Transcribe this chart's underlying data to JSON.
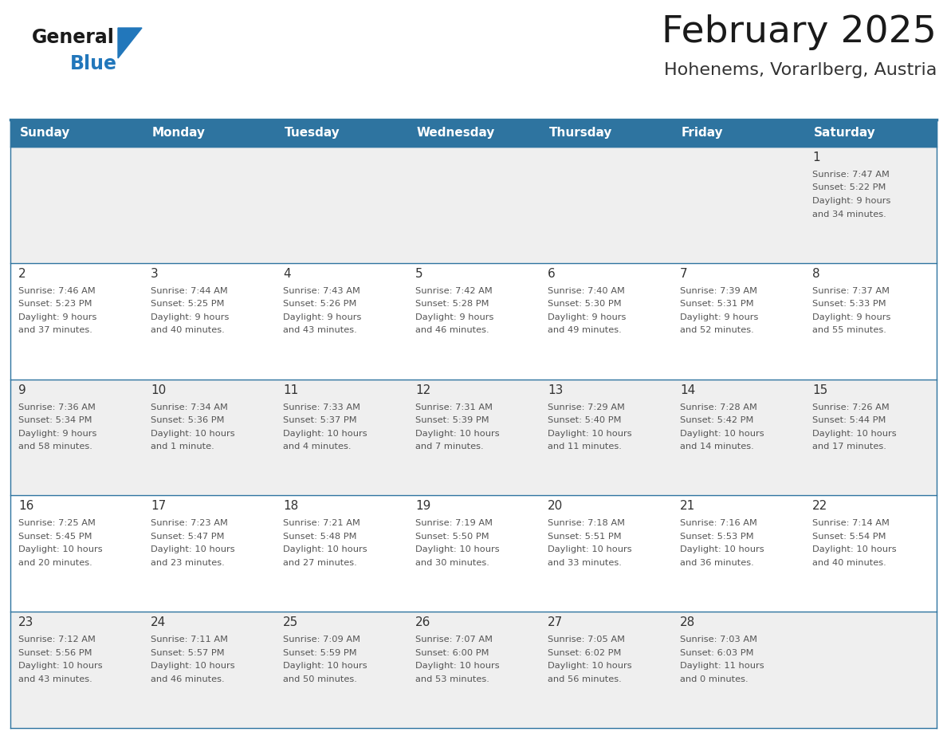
{
  "title": "February 2025",
  "subtitle": "Hohenems, Vorarlberg, Austria",
  "days_of_week": [
    "Sunday",
    "Monday",
    "Tuesday",
    "Wednesday",
    "Thursday",
    "Friday",
    "Saturday"
  ],
  "header_bg": "#2E74A0",
  "header_text": "#FFFFFF",
  "row_bg_gray": "#EFEFEF",
  "row_bg_white": "#FFFFFF",
  "separator_color": "#2E74A0",
  "day_number_color": "#333333",
  "info_text_color": "#555555",
  "title_color": "#1A1A1A",
  "subtitle_color": "#333333",
  "logo_general_color": "#1A1A1A",
  "logo_blue_color": "#2277BB",
  "weeks": [
    [
      null,
      null,
      null,
      null,
      null,
      null,
      {
        "day": 1,
        "sunrise": "7:47 AM",
        "sunset": "5:22 PM",
        "daylight_line1": "Daylight: 9 hours",
        "daylight_line2": "and 34 minutes."
      }
    ],
    [
      {
        "day": 2,
        "sunrise": "7:46 AM",
        "sunset": "5:23 PM",
        "daylight_line1": "Daylight: 9 hours",
        "daylight_line2": "and 37 minutes."
      },
      {
        "day": 3,
        "sunrise": "7:44 AM",
        "sunset": "5:25 PM",
        "daylight_line1": "Daylight: 9 hours",
        "daylight_line2": "and 40 minutes."
      },
      {
        "day": 4,
        "sunrise": "7:43 AM",
        "sunset": "5:26 PM",
        "daylight_line1": "Daylight: 9 hours",
        "daylight_line2": "and 43 minutes."
      },
      {
        "day": 5,
        "sunrise": "7:42 AM",
        "sunset": "5:28 PM",
        "daylight_line1": "Daylight: 9 hours",
        "daylight_line2": "and 46 minutes."
      },
      {
        "day": 6,
        "sunrise": "7:40 AM",
        "sunset": "5:30 PM",
        "daylight_line1": "Daylight: 9 hours",
        "daylight_line2": "and 49 minutes."
      },
      {
        "day": 7,
        "sunrise": "7:39 AM",
        "sunset": "5:31 PM",
        "daylight_line1": "Daylight: 9 hours",
        "daylight_line2": "and 52 minutes."
      },
      {
        "day": 8,
        "sunrise": "7:37 AM",
        "sunset": "5:33 PM",
        "daylight_line1": "Daylight: 9 hours",
        "daylight_line2": "and 55 minutes."
      }
    ],
    [
      {
        "day": 9,
        "sunrise": "7:36 AM",
        "sunset": "5:34 PM",
        "daylight_line1": "Daylight: 9 hours",
        "daylight_line2": "and 58 minutes."
      },
      {
        "day": 10,
        "sunrise": "7:34 AM",
        "sunset": "5:36 PM",
        "daylight_line1": "Daylight: 10 hours",
        "daylight_line2": "and 1 minute."
      },
      {
        "day": 11,
        "sunrise": "7:33 AM",
        "sunset": "5:37 PM",
        "daylight_line1": "Daylight: 10 hours",
        "daylight_line2": "and 4 minutes."
      },
      {
        "day": 12,
        "sunrise": "7:31 AM",
        "sunset": "5:39 PM",
        "daylight_line1": "Daylight: 10 hours",
        "daylight_line2": "and 7 minutes."
      },
      {
        "day": 13,
        "sunrise": "7:29 AM",
        "sunset": "5:40 PM",
        "daylight_line1": "Daylight: 10 hours",
        "daylight_line2": "and 11 minutes."
      },
      {
        "day": 14,
        "sunrise": "7:28 AM",
        "sunset": "5:42 PM",
        "daylight_line1": "Daylight: 10 hours",
        "daylight_line2": "and 14 minutes."
      },
      {
        "day": 15,
        "sunrise": "7:26 AM",
        "sunset": "5:44 PM",
        "daylight_line1": "Daylight: 10 hours",
        "daylight_line2": "and 17 minutes."
      }
    ],
    [
      {
        "day": 16,
        "sunrise": "7:25 AM",
        "sunset": "5:45 PM",
        "daylight_line1": "Daylight: 10 hours",
        "daylight_line2": "and 20 minutes."
      },
      {
        "day": 17,
        "sunrise": "7:23 AM",
        "sunset": "5:47 PM",
        "daylight_line1": "Daylight: 10 hours",
        "daylight_line2": "and 23 minutes."
      },
      {
        "day": 18,
        "sunrise": "7:21 AM",
        "sunset": "5:48 PM",
        "daylight_line1": "Daylight: 10 hours",
        "daylight_line2": "and 27 minutes."
      },
      {
        "day": 19,
        "sunrise": "7:19 AM",
        "sunset": "5:50 PM",
        "daylight_line1": "Daylight: 10 hours",
        "daylight_line2": "and 30 minutes."
      },
      {
        "day": 20,
        "sunrise": "7:18 AM",
        "sunset": "5:51 PM",
        "daylight_line1": "Daylight: 10 hours",
        "daylight_line2": "and 33 minutes."
      },
      {
        "day": 21,
        "sunrise": "7:16 AM",
        "sunset": "5:53 PM",
        "daylight_line1": "Daylight: 10 hours",
        "daylight_line2": "and 36 minutes."
      },
      {
        "day": 22,
        "sunrise": "7:14 AM",
        "sunset": "5:54 PM",
        "daylight_line1": "Daylight: 10 hours",
        "daylight_line2": "and 40 minutes."
      }
    ],
    [
      {
        "day": 23,
        "sunrise": "7:12 AM",
        "sunset": "5:56 PM",
        "daylight_line1": "Daylight: 10 hours",
        "daylight_line2": "and 43 minutes."
      },
      {
        "day": 24,
        "sunrise": "7:11 AM",
        "sunset": "5:57 PM",
        "daylight_line1": "Daylight: 10 hours",
        "daylight_line2": "and 46 minutes."
      },
      {
        "day": 25,
        "sunrise": "7:09 AM",
        "sunset": "5:59 PM",
        "daylight_line1": "Daylight: 10 hours",
        "daylight_line2": "and 50 minutes."
      },
      {
        "day": 26,
        "sunrise": "7:07 AM",
        "sunset": "6:00 PM",
        "daylight_line1": "Daylight: 10 hours",
        "daylight_line2": "and 53 minutes."
      },
      {
        "day": 27,
        "sunrise": "7:05 AM",
        "sunset": "6:02 PM",
        "daylight_line1": "Daylight: 10 hours",
        "daylight_line2": "and 56 minutes."
      },
      {
        "day": 28,
        "sunrise": "7:03 AM",
        "sunset": "6:03 PM",
        "daylight_line1": "Daylight: 11 hours",
        "daylight_line2": "and 0 minutes."
      },
      null
    ]
  ],
  "row_backgrounds": [
    "gray",
    "white",
    "gray",
    "white",
    "gray"
  ]
}
